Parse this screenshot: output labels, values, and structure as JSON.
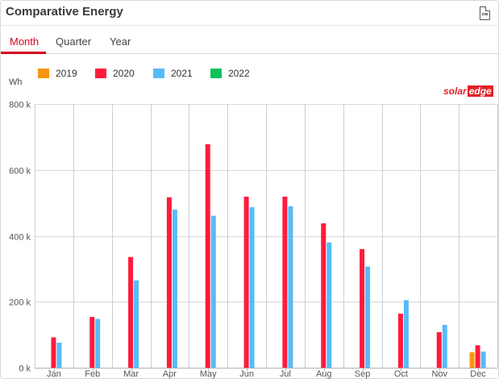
{
  "header": {
    "title": "Comparative Energy",
    "csv_icon_name": "csv-export-icon",
    "csv_icon_text": "csv"
  },
  "tabs": [
    {
      "label": "Month",
      "active": true
    },
    {
      "label": "Quarter",
      "active": false
    },
    {
      "label": "Year",
      "active": false
    }
  ],
  "logo": {
    "part1": "solar",
    "part2": "edge"
  },
  "chart_data": {
    "type": "bar",
    "ylabel": "Wh",
    "ylim": [
      0,
      800000
    ],
    "yticks": [
      0,
      200000,
      400000,
      600000,
      800000
    ],
    "ytick_labels": [
      "0 k",
      "200 k",
      "400 k",
      "600 k",
      "800 k"
    ],
    "grid": true,
    "legend_placement": "top-left",
    "categories": [
      "Jan",
      "Feb",
      "Mar",
      "Apr",
      "May",
      "Jun",
      "Jul",
      "Aug",
      "Sep",
      "Oct",
      "Nov",
      "Dec"
    ],
    "series": [
      {
        "name": "2019",
        "color": "#f7960e",
        "values": [
          0,
          0,
          0,
          0,
          0,
          0,
          0,
          0,
          0,
          0,
          0,
          47000
        ]
      },
      {
        "name": "2020",
        "color": "#ff1b3b",
        "values": [
          92000,
          154000,
          336000,
          517000,
          678000,
          519000,
          519000,
          438000,
          360000,
          164000,
          108000,
          68000
        ]
      },
      {
        "name": "2021",
        "color": "#57bbf9",
        "values": [
          76000,
          148000,
          265000,
          480000,
          461000,
          487000,
          490000,
          380000,
          307000,
          205000,
          130000,
          49000
        ]
      },
      {
        "name": "2022",
        "color": "#11c05e",
        "values": [
          0,
          0,
          0,
          0,
          0,
          0,
          0,
          0,
          0,
          0,
          0,
          0
        ]
      }
    ]
  }
}
